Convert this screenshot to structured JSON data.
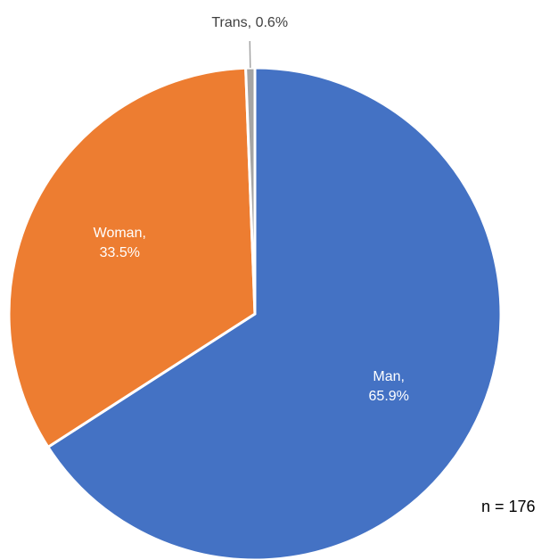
{
  "chart_data": {
    "type": "pie",
    "categories": [
      "Man",
      "Woman",
      "Trans"
    ],
    "values": [
      65.9,
      33.5,
      0.6
    ],
    "value_labels": [
      "Man, 65.9%",
      "Woman, 33.5%",
      "Trans, 0.6%"
    ],
    "colors": [
      "#4472c4",
      "#ed7d31",
      "#a5a5a5"
    ],
    "annotation": "n = 176"
  }
}
